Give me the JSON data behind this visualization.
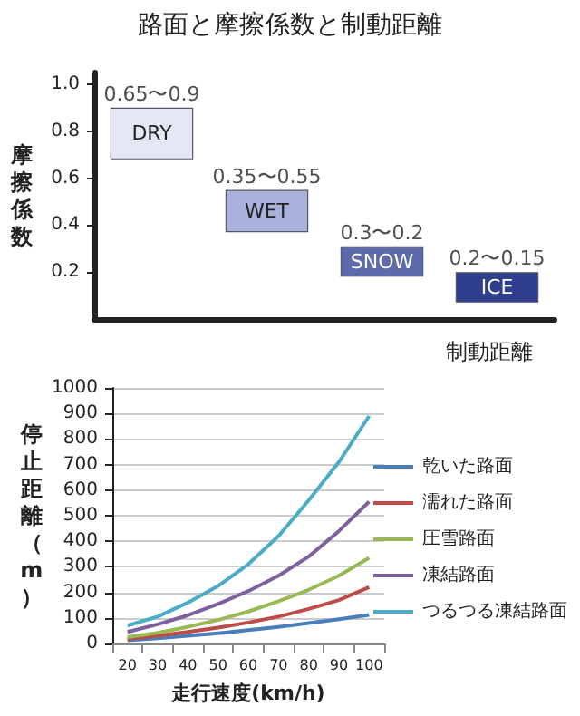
{
  "chart_data": [
    {
      "type": "bar",
      "title": "路面と摩擦係数と制動距離",
      "xlabel": "制動距離",
      "ylabel": "摩擦係数",
      "categories": [
        "DRY",
        "WET",
        "SNOW",
        "ICE"
      ],
      "base": [
        0.68,
        0.37,
        0.18,
        0.07
      ],
      "values": [
        0.22,
        0.18,
        0.13,
        0.13
      ],
      "colors": [
        "#e4e8f4",
        "#a9b2da",
        "#5d6bab",
        "#2f3f8e"
      ],
      "annotations": [
        {
          "text": "0.65〜0.9",
          "x": "DRY",
          "y": 0.9
        },
        {
          "text": "0.35〜0.55",
          "x": "WET",
          "y": 0.55
        },
        {
          "text": "0.3〜0.2",
          "x": "SNOW",
          "y": 0.31
        },
        {
          "text": "0.2〜0.15",
          "x": "ICE",
          "y": 0.2
        }
      ],
      "ylim": [
        0,
        1.05
      ],
      "yticks": [
        0.2,
        0.4,
        0.6,
        0.8,
        {
          "value": 1,
          "label": "1.0"
        }
      ],
      "tick_labels": "y",
      "grid": false
    },
    {
      "type": "line",
      "xlabel": "走行速度(km/h)",
      "ylabel": "停止距離（m）",
      "categories": [
        "20",
        "30",
        "40",
        "50",
        "60",
        "70",
        "80",
        "90",
        "100"
      ],
      "series": [
        {
          "name": "乾いた路面",
          "color": "#4a7ebb",
          "values": [
            12,
            20,
            30,
            40,
            52,
            65,
            80,
            95,
            112
          ]
        },
        {
          "name": "濡れた路面",
          "color": "#be4b48",
          "values": [
            18,
            30,
            45,
            62,
            82,
            105,
            135,
            170,
            220
          ]
        },
        {
          "name": "圧雪路面",
          "color": "#98b954",
          "values": [
            25,
            42,
            65,
            92,
            125,
            165,
            210,
            265,
            335
          ]
        },
        {
          "name": "凍結路面",
          "color": "#7d60a0",
          "values": [
            45,
            75,
            110,
            155,
            205,
            265,
            340,
            440,
            555
          ]
        },
        {
          "name": "つるつる凍結路面",
          "color": "#4bacc6",
          "values": [
            70,
            105,
            160,
            225,
            310,
            420,
            560,
            710,
            890
          ]
        }
      ],
      "ylim": [
        0,
        1000
      ],
      "yticks": [
        0,
        100,
        200,
        300,
        400,
        500,
        600,
        700,
        800,
        900,
        1000
      ],
      "grid": "y",
      "legend": "right",
      "marker": "none",
      "line_style": "solid"
    }
  ]
}
